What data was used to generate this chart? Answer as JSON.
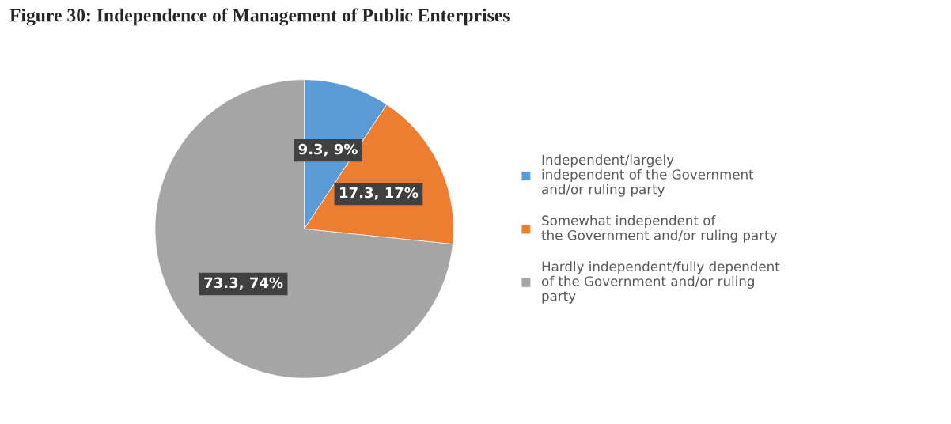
{
  "chart_data": {
    "type": "pie",
    "title": "Figure 30: Independence of Management of Public Enterprises",
    "categories": [
      "Independent/largely\nindependent of the Government\nand/or ruling party",
      "Somewhat independent of\nthe Government and/or ruling party",
      "Hardly independent/fully dependent\nof the Government and/or ruling\nparty"
    ],
    "values": [
      9.3,
      17.3,
      73.3
    ],
    "value_labels": [
      "9.3, 9%",
      "17.3, 17%",
      "73.3, 74%"
    ],
    "colors": [
      "#5b9bd5",
      "#ed7d31",
      "#a5a5a5"
    ],
    "legend": "right"
  }
}
